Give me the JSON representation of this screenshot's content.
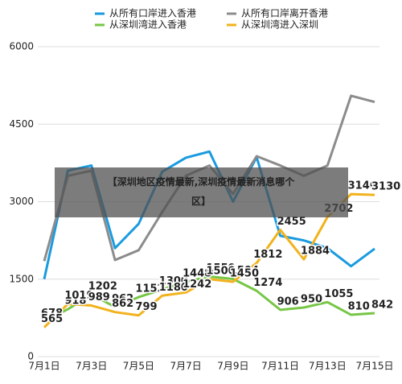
{
  "chart_data": {
    "type": "line",
    "categories": [
      "7月1日",
      null,
      "7月3日",
      null,
      "7月5日",
      null,
      "7月7日",
      null,
      "7月9日",
      null,
      "7月11日",
      null,
      "7月13日",
      null,
      "7月15日"
    ],
    "series": [
      {
        "name": "从所有口岸进入香港",
        "color": "#1a9be0",
        "values": [
          1500,
          3600,
          3700,
          2100,
          2570,
          3580,
          3850,
          3970,
          3000,
          3860,
          2340,
          2250,
          2100,
          1750,
          2090
        ]
      },
      {
        "name": "从所有口岸离开香港",
        "color": "#8c8c8c",
        "values": [
          1850,
          3500,
          3600,
          1870,
          2060,
          2800,
          3500,
          3700,
          3150,
          3880,
          3700,
          3500,
          3700,
          5050,
          4930
        ]
      },
      {
        "name": "从深圳湾进入香港",
        "color": "#77c646",
        "values": [
          678,
          918,
          1202,
          962,
          1152,
          1300,
          1448,
          1550,
          1504,
          1274,
          906,
          950,
          1055,
          810,
          842
        ],
        "data_labels": true
      },
      {
        "name": "从深圳湾进入深圳",
        "color": "#f2b21c",
        "values": [
          565,
          1019,
          989,
          862,
          799,
          1180,
          1242,
          1500,
          1450,
          1812,
          2455,
          1884,
          2702,
          3146,
          3130
        ],
        "data_labels": true
      }
    ],
    "ylim": [
      0,
      6000
    ],
    "yticks": [
      0,
      1500,
      3000,
      4500,
      6000
    ],
    "grid": true,
    "overlay_text": "【深圳地区疫情最新,深圳疫情最新消息哪个区】"
  }
}
